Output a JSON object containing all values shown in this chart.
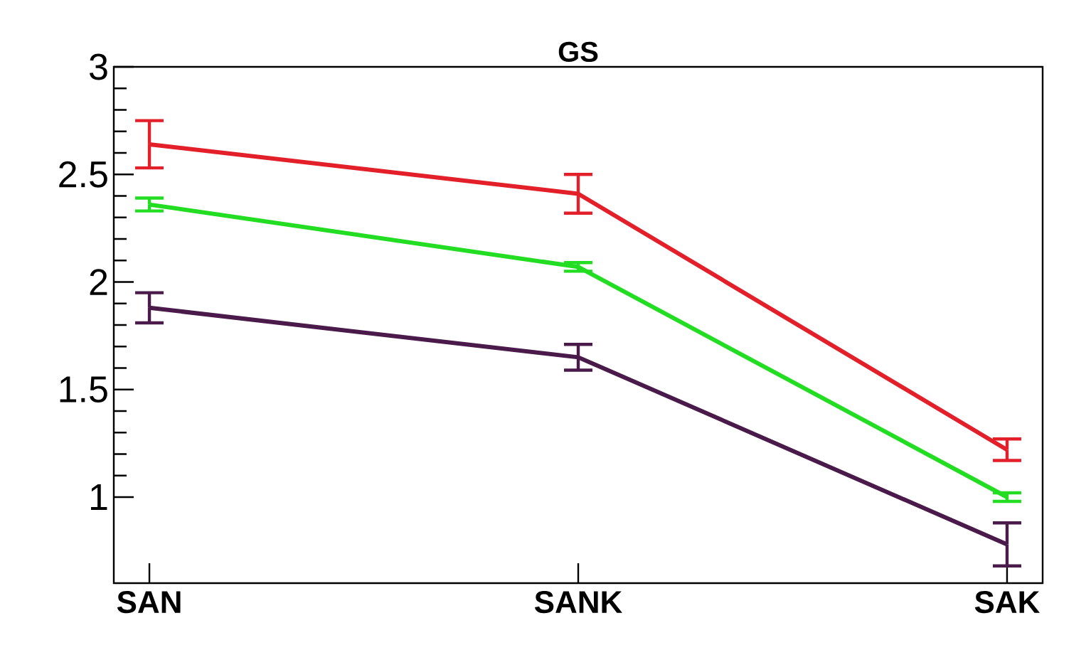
{
  "chart_data": {
    "type": "line",
    "title": "GS",
    "categories": [
      "SAN",
      "SANK",
      "SAK"
    ],
    "series": [
      {
        "color": "#e3202a",
        "values": [
          2.64,
          2.41,
          1.22
        ],
        "errors": [
          0.11,
          0.09,
          0.05
        ]
      },
      {
        "color": "#22dd22",
        "values": [
          2.36,
          2.07,
          1.0
        ],
        "errors": [
          0.03,
          0.02,
          0.02
        ]
      },
      {
        "color": "#4a1a4a",
        "values": [
          1.88,
          1.65,
          0.78
        ],
        "errors": [
          0.07,
          0.06,
          0.1
        ]
      }
    ],
    "ylim": [
      0.6,
      3
    ],
    "yticks": [
      1,
      1.5,
      2,
      2.5,
      3
    ],
    "marker": "none",
    "line_style": "solid"
  }
}
